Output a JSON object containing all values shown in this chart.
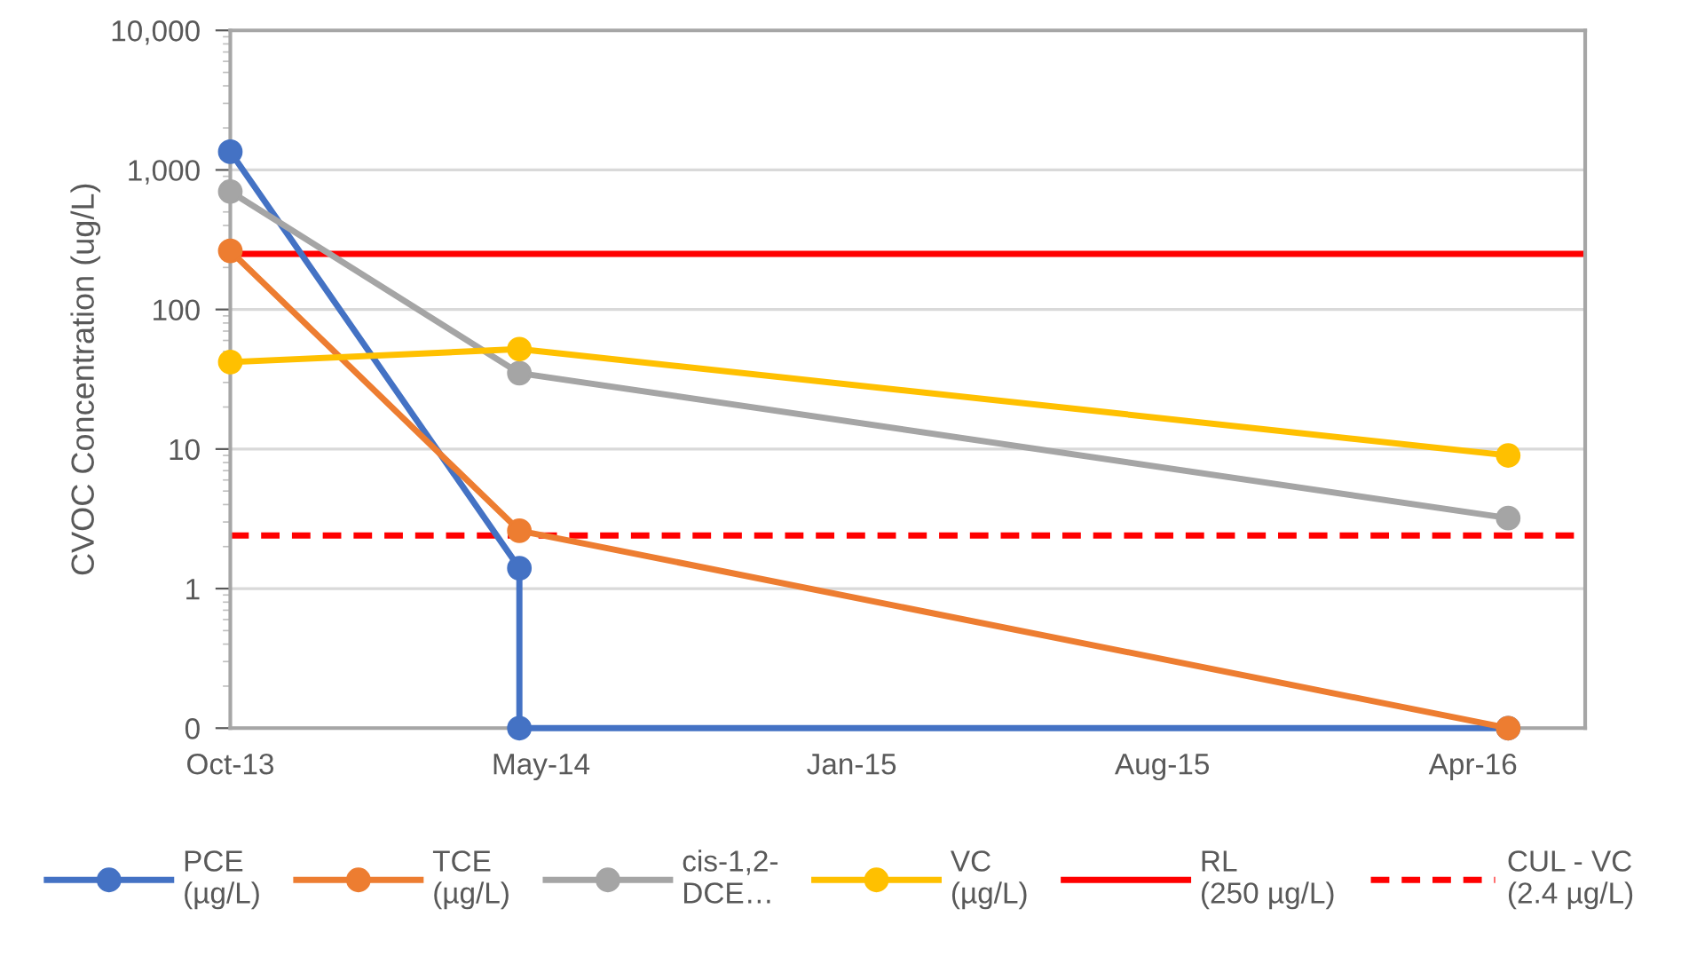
{
  "chart_data": {
    "type": "line",
    "ylabel": "CVOC Concentration (ug/L)",
    "log": "y",
    "grid": "y",
    "legend": "bottom",
    "marker": "circle",
    "line_style": "solid",
    "xlim": [
      "2013-10-01",
      "2016-06-30"
    ],
    "xticks": [
      {
        "value": "2013-10-01",
        "label": "Oct-13"
      },
      {
        "value": "2014-05-19",
        "label": "May-14"
      },
      {
        "value": "2015-01-04",
        "label": "Jan-15"
      },
      {
        "value": "2015-08-22",
        "label": "Aug-15"
      },
      {
        "value": "2016-04-08",
        "label": "Apr-16"
      }
    ],
    "ylim": [
      0.1,
      10000
    ],
    "yticks": [
      {
        "value": 0.1,
        "label": "0"
      },
      1,
      10,
      100,
      {
        "value": 1000,
        "label": "1,000"
      },
      {
        "value": 10000,
        "label": "10,000"
      }
    ],
    "series": [
      {
        "name": "PCE\n(µg/L)",
        "color": "#4472c4",
        "x": [
          "2013-10-01",
          "2014-05-03",
          "2014-05-03",
          "2016-05-04"
        ],
        "values": [
          1350,
          1.4,
          0.1,
          0.1
        ]
      },
      {
        "name": "TCE\n(µg/L)",
        "color": "#ed7d31",
        "x": [
          "2013-10-01",
          "2014-05-03",
          "2016-05-04"
        ],
        "values": [
          263,
          2.6,
          0.1
        ]
      },
      {
        "name": "cis-1,2-\nDCE…",
        "color": "#a5a5a5",
        "x": [
          "2013-10-01",
          "2014-05-03",
          "2016-05-04"
        ],
        "values": [
          700,
          35,
          3.2
        ]
      },
      {
        "name": "VC\n(µg/L)",
        "color": "#ffc000",
        "x": [
          "2013-10-01",
          "2014-05-03",
          "2016-05-04"
        ],
        "values": [
          42,
          52,
          9
        ]
      }
    ],
    "ref_lines": [
      {
        "axis": "y",
        "value": 250,
        "label": "RL\n(250 µg/L)",
        "color": "#ff0000",
        "line_style": "solid"
      },
      {
        "axis": "y",
        "value": 2.4,
        "label": "CUL - VC\n(2.4 µg/L)",
        "color": "#ff0000",
        "line_style": "dashed"
      }
    ]
  }
}
